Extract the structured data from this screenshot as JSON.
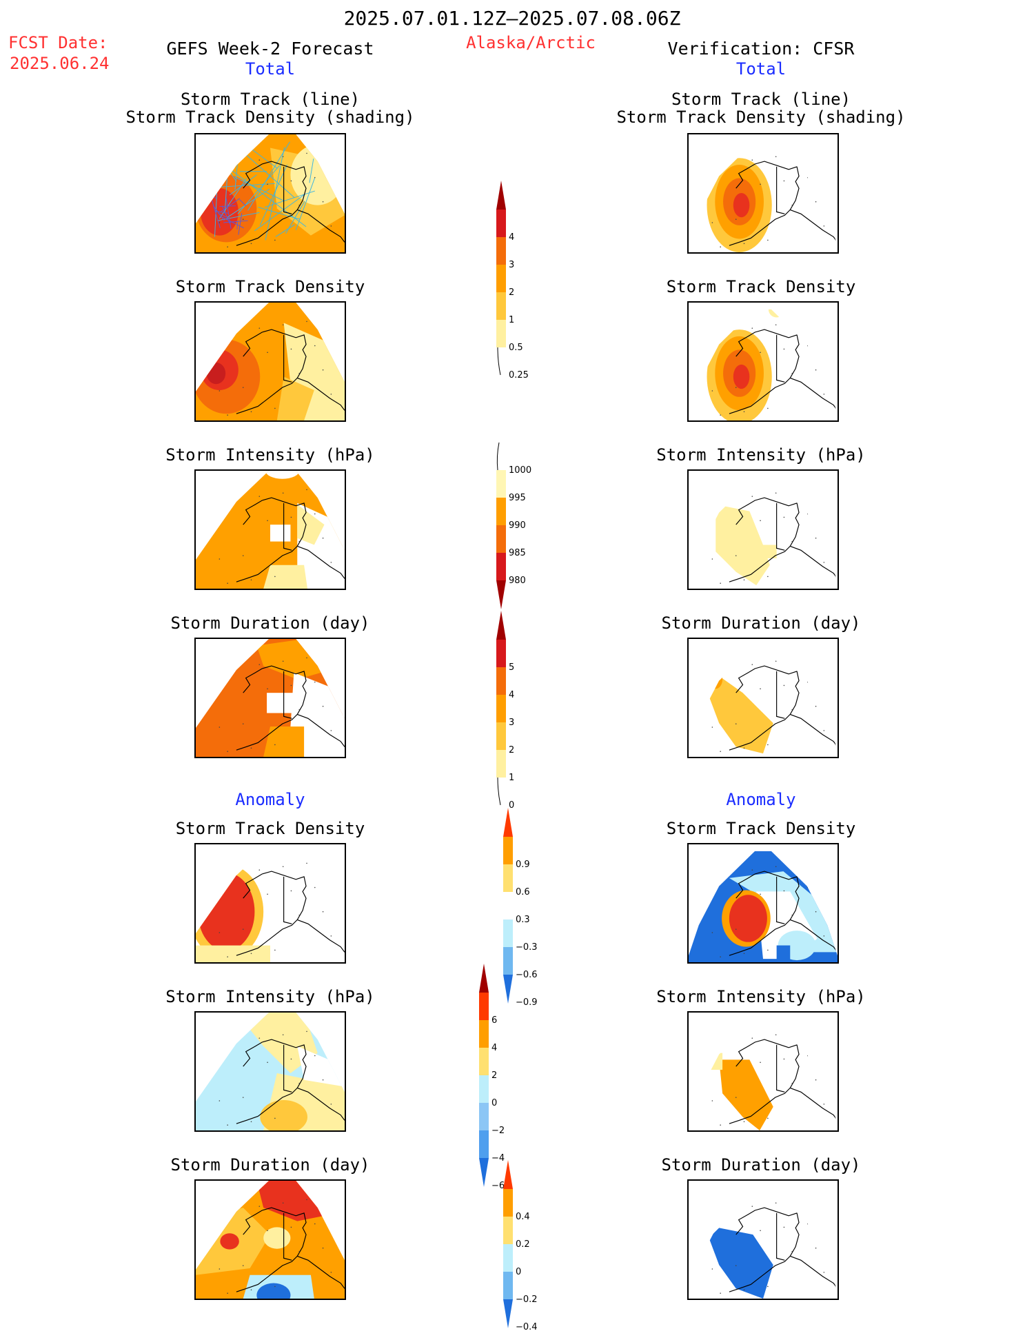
{
  "header": {
    "period": "2025.07.01.12Z–2025.07.08.06Z",
    "fcst_label": "FCST Date:",
    "fcst_date": "2025.06.24",
    "region": "Alaska/Arctic",
    "left_title": "GEFS Week-2 Forecast",
    "right_title": "Verification: CFSR",
    "left_sub": "Total",
    "right_sub": "Total",
    "left_anomaly": "Anomaly",
    "right_anomaly": "Anomaly"
  },
  "titles": {
    "track_line": "Storm Track (line)",
    "track_shading": "Storm Track Density (shading)",
    "track_density": "Storm Track Density",
    "intensity": "Storm Intensity (hPa)",
    "duration": "Storm Duration (day)"
  },
  "colorbars": [
    {
      "id": "density",
      "labels": [
        "4",
        "3",
        "2",
        "1",
        "0.5",
        "0.25"
      ],
      "colors": [
        "#d7191c",
        "#f46d0a",
        "#ff9e00",
        "#ffc83c",
        "#fff0a0"
      ],
      "top": "#a00000",
      "tail": "line"
    },
    {
      "id": "intensity",
      "labels": [
        "1000",
        "995",
        "990",
        "985",
        "980"
      ],
      "colors": [
        "#fff6b4",
        "#ff9e00",
        "#f46d0a",
        "#d7191c"
      ],
      "bottom": "#a00000",
      "head": "line"
    },
    {
      "id": "duration",
      "labels": [
        "5",
        "4",
        "3",
        "2",
        "1",
        "0"
      ],
      "colors": [
        "#d7191c",
        "#f46d0a",
        "#ff9e00",
        "#ffc83c",
        "#fff0a0"
      ],
      "top": "#a00000",
      "tail": "line"
    },
    {
      "id": "anom_density",
      "labels": [
        "0.9",
        "0.6",
        "0.3",
        "−0.3",
        "−0.6",
        "−0.9"
      ],
      "colors": [
        "#ff9e00",
        "#ffe070",
        "#ffffff",
        "#bdeefb",
        "#6fb8f0"
      ],
      "top": "#ff3a00",
      "bottom": "#1f6fdc"
    },
    {
      "id": "anom_intensity",
      "labels": [
        "6",
        "4",
        "2",
        "0",
        "−2",
        "−4",
        "−6"
      ],
      "colors": [
        "#ff3a00",
        "#ff9e00",
        "#ffe070",
        "#bdeefb",
        "#8cc6f5",
        "#4f9fee"
      ],
      "top": "#a00000",
      "bottom": "#1f6fdc"
    },
    {
      "id": "anom_duration",
      "labels": [
        "0.4",
        "0.2",
        "0",
        "−0.2",
        "−0.4"
      ],
      "colors": [
        "#ff9e00",
        "#ffe070",
        "#bdeefb",
        "#6fb8f0"
      ],
      "top": "#ff3a00",
      "bottom": "#1f6fdc"
    }
  ],
  "palette": {
    "dark_red": "#c81e1e",
    "red": "#e8321e",
    "orange_red": "#f46d0a",
    "orange": "#ffa000",
    "light_orange": "#ffc83c",
    "yellow": "#fff0a0",
    "light_blue": "#bdeefb",
    "blue": "#1f6fdc",
    "track_line": "#3db5e0"
  }
}
